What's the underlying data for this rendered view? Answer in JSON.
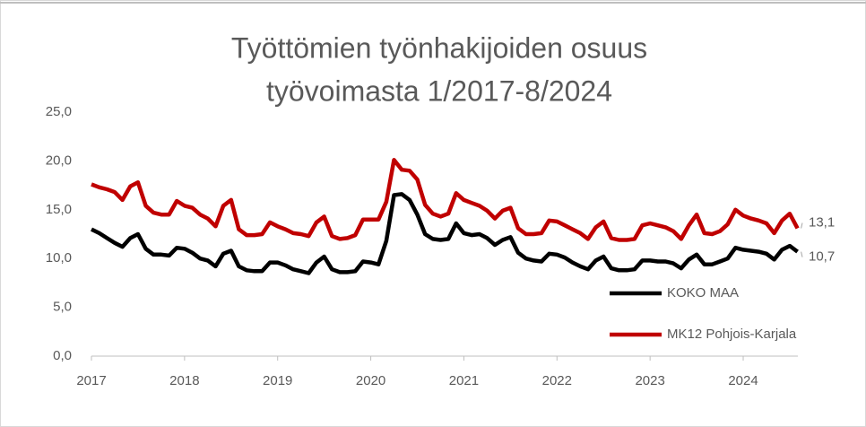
{
  "chart_data": {
    "type": "line",
    "title": [
      "Työttömien työnhakijoiden osuus",
      "työvoimasta 1/2017-8/2024"
    ],
    "categories": [
      "2017",
      null,
      null,
      null,
      null,
      null,
      null,
      null,
      null,
      null,
      null,
      null,
      "2018",
      null,
      null,
      null,
      null,
      null,
      null,
      null,
      null,
      null,
      null,
      null,
      "2019",
      null,
      null,
      null,
      null,
      null,
      null,
      null,
      null,
      null,
      null,
      null,
      "2020",
      null,
      null,
      null,
      null,
      null,
      null,
      null,
      null,
      null,
      null,
      null,
      "2021",
      null,
      null,
      null,
      null,
      null,
      null,
      null,
      null,
      null,
      null,
      null,
      "2022",
      null,
      null,
      null,
      null,
      null,
      null,
      null,
      null,
      null,
      null,
      null,
      "2023",
      null,
      null,
      null,
      null,
      null,
      null,
      null,
      null,
      null,
      null,
      null,
      "2024",
      null,
      null,
      null,
      null,
      null,
      null,
      null
    ],
    "series": [
      {
        "name": "KOKO MAA",
        "color": "#000000",
        "values": [
          13.0,
          12.6,
          12.1,
          11.6,
          11.2,
          12.1,
          12.5,
          11.0,
          10.4,
          10.4,
          10.3,
          11.1,
          11.0,
          10.6,
          10.0,
          9.8,
          9.2,
          10.5,
          10.8,
          9.2,
          8.8,
          8.7,
          8.7,
          9.6,
          9.6,
          9.3,
          8.9,
          8.7,
          8.5,
          9.6,
          10.2,
          8.9,
          8.6,
          8.6,
          8.7,
          9.7,
          9.6,
          9.4,
          11.8,
          16.5,
          16.6,
          16.0,
          14.5,
          12.5,
          12.0,
          11.9,
          12.0,
          13.6,
          12.6,
          12.4,
          12.5,
          12.1,
          11.4,
          11.9,
          12.2,
          10.6,
          10.0,
          9.8,
          9.7,
          10.5,
          10.4,
          10.1,
          9.6,
          9.2,
          8.9,
          9.8,
          10.2,
          9.0,
          8.8,
          8.8,
          8.9,
          9.8,
          9.8,
          9.7,
          9.7,
          9.5,
          9.0,
          9.9,
          10.4,
          9.4,
          9.4,
          9.7,
          10.0,
          11.1,
          10.9,
          10.8,
          10.7,
          10.5,
          9.9,
          10.9,
          11.3,
          10.7
        ],
        "value_labels": [
          null,
          null,
          null,
          null,
          null,
          null,
          null,
          null,
          null,
          null,
          null,
          null,
          null,
          null,
          null,
          null,
          null,
          null,
          null,
          null,
          null,
          null,
          null,
          null,
          null,
          null,
          null,
          null,
          null,
          null,
          null,
          null,
          null,
          null,
          null,
          null,
          null,
          null,
          null,
          null,
          null,
          null,
          null,
          null,
          null,
          null,
          null,
          null,
          null,
          null,
          null,
          null,
          null,
          null,
          null,
          null,
          null,
          null,
          null,
          null,
          null,
          null,
          null,
          null,
          null,
          null,
          null,
          null,
          null,
          null,
          null,
          null,
          null,
          null,
          null,
          null,
          null,
          null,
          null,
          null,
          null,
          null,
          null,
          null,
          null,
          null,
          null,
          null,
          null,
          null,
          null,
          "10,7"
        ]
      },
      {
        "name": "MK12 Pohjois-Karjala",
        "color": "#c00000",
        "values": [
          17.6,
          17.3,
          17.1,
          16.8,
          16.0,
          17.4,
          17.8,
          15.4,
          14.7,
          14.5,
          14.5,
          15.9,
          15.4,
          15.2,
          14.5,
          14.1,
          13.3,
          15.4,
          16.0,
          13.0,
          12.4,
          12.4,
          12.5,
          13.7,
          13.3,
          13.0,
          12.6,
          12.5,
          12.3,
          13.7,
          14.3,
          12.3,
          12.0,
          12.1,
          12.4,
          14.0,
          14.0,
          14.0,
          15.8,
          20.1,
          19.1,
          19.0,
          18.1,
          15.5,
          14.6,
          14.3,
          14.6,
          16.7,
          16.0,
          15.7,
          15.4,
          14.9,
          14.1,
          14.9,
          15.2,
          13.1,
          12.5,
          12.5,
          12.6,
          13.9,
          13.8,
          13.4,
          13.0,
          12.6,
          12.0,
          13.2,
          13.8,
          12.1,
          11.9,
          11.9,
          12.0,
          13.4,
          13.6,
          13.4,
          13.2,
          12.8,
          12.0,
          13.4,
          14.5,
          12.6,
          12.5,
          12.8,
          13.5,
          15.0,
          14.4,
          14.1,
          13.9,
          13.6,
          12.6,
          13.9,
          14.6,
          13.1
        ],
        "value_labels": [
          null,
          null,
          null,
          null,
          null,
          null,
          null,
          null,
          null,
          null,
          null,
          null,
          null,
          null,
          null,
          null,
          null,
          null,
          null,
          null,
          null,
          null,
          null,
          null,
          null,
          null,
          null,
          null,
          null,
          null,
          null,
          null,
          null,
          null,
          null,
          null,
          null,
          null,
          null,
          null,
          null,
          null,
          null,
          null,
          null,
          null,
          null,
          null,
          null,
          null,
          null,
          null,
          null,
          null,
          null,
          null,
          null,
          null,
          null,
          null,
          null,
          null,
          null,
          null,
          null,
          null,
          null,
          null,
          null,
          null,
          null,
          null,
          null,
          null,
          null,
          null,
          null,
          null,
          null,
          null,
          null,
          null,
          null,
          null,
          null,
          null,
          null,
          null,
          null,
          null,
          null,
          "13,1"
        ]
      }
    ],
    "ylim": [
      0,
      25
    ],
    "yticks": [
      {
        "value": 0,
        "label": "0,0"
      },
      {
        "value": 5,
        "label": "5,0"
      },
      {
        "value": 10,
        "label": "10,0"
      },
      {
        "value": 15,
        "label": "15,0"
      },
      {
        "value": 20,
        "label": "20,0"
      },
      {
        "value": 25,
        "label": "25,0"
      }
    ],
    "grid": false,
    "legend": "lower-right"
  }
}
